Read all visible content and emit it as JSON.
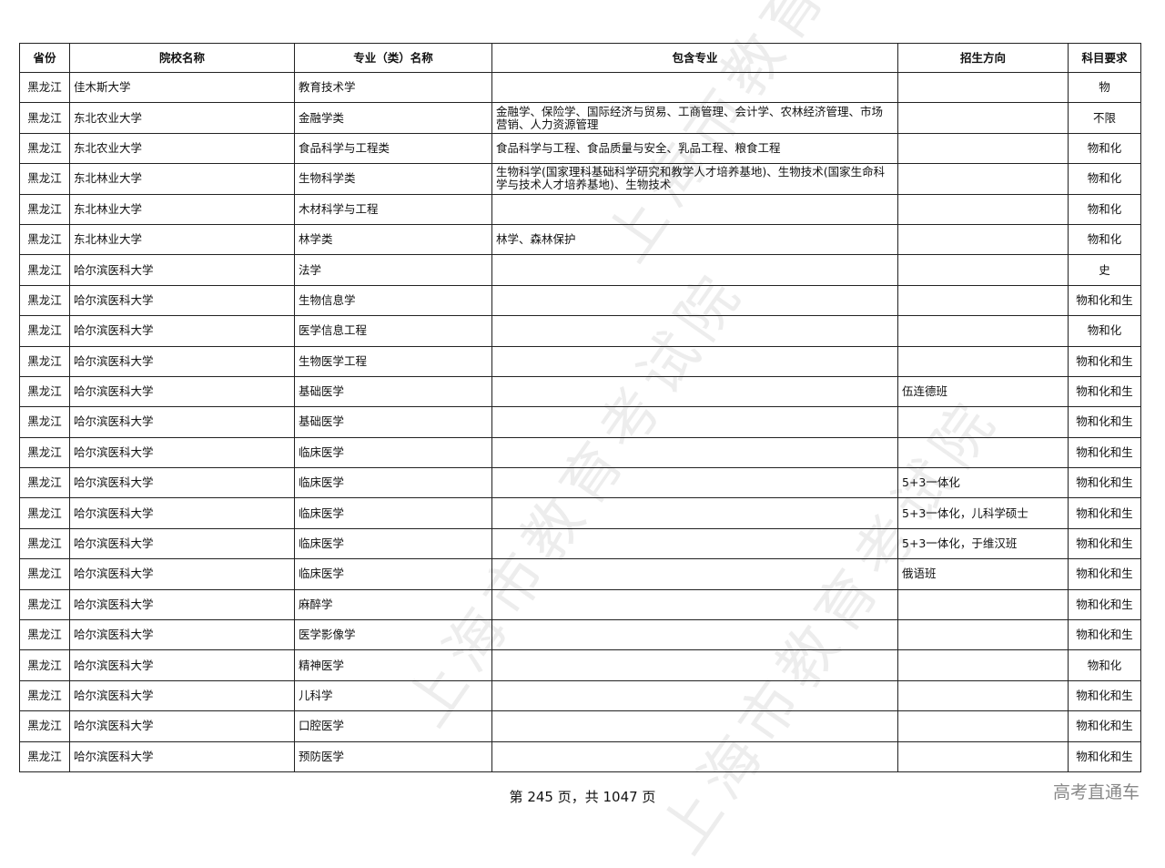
{
  "watermark": "上海市教育考试院",
  "headers": [
    "省份",
    "院校名称",
    "专业（类）名称",
    "包含专业",
    "招生方向",
    "科目要求"
  ],
  "rows": [
    [
      "黑龙江",
      "佳木斯大学",
      "教育技术学",
      "",
      "",
      "物"
    ],
    [
      "黑龙江",
      "东北农业大学",
      "金融学类",
      "金融学、保险学、国际经济与贸易、工商管理、会计学、农林经济管理、市场营销、人力资源管理",
      "",
      "不限"
    ],
    [
      "黑龙江",
      "东北农业大学",
      "食品科学与工程类",
      "食品科学与工程、食品质量与安全、乳品工程、粮食工程",
      "",
      "物和化"
    ],
    [
      "黑龙江",
      "东北林业大学",
      "生物科学类",
      "生物科学(国家理科基础科学研究和教学人才培养基地)、生物技术(国家生命科学与技术人才培养基地)、生物技术",
      "",
      "物和化"
    ],
    [
      "黑龙江",
      "东北林业大学",
      "木材科学与工程",
      "",
      "",
      "物和化"
    ],
    [
      "黑龙江",
      "东北林业大学",
      "林学类",
      "林学、森林保护",
      "",
      "物和化"
    ],
    [
      "黑龙江",
      "哈尔滨医科大学",
      "法学",
      "",
      "",
      "史"
    ],
    [
      "黑龙江",
      "哈尔滨医科大学",
      "生物信息学",
      "",
      "",
      "物和化和生"
    ],
    [
      "黑龙江",
      "哈尔滨医科大学",
      "医学信息工程",
      "",
      "",
      "物和化"
    ],
    [
      "黑龙江",
      "哈尔滨医科大学",
      "生物医学工程",
      "",
      "",
      "物和化和生"
    ],
    [
      "黑龙江",
      "哈尔滨医科大学",
      "基础医学",
      "",
      "伍连德班",
      "物和化和生"
    ],
    [
      "黑龙江",
      "哈尔滨医科大学",
      "基础医学",
      "",
      "",
      "物和化和生"
    ],
    [
      "黑龙江",
      "哈尔滨医科大学",
      "临床医学",
      "",
      "",
      "物和化和生"
    ],
    [
      "黑龙江",
      "哈尔滨医科大学",
      "临床医学",
      "",
      "5+3一体化",
      "物和化和生"
    ],
    [
      "黑龙江",
      "哈尔滨医科大学",
      "临床医学",
      "",
      "5+3一体化，儿科学硕士",
      "物和化和生"
    ],
    [
      "黑龙江",
      "哈尔滨医科大学",
      "临床医学",
      "",
      "5+3一体化，于维汉班",
      "物和化和生"
    ],
    [
      "黑龙江",
      "哈尔滨医科大学",
      "临床医学",
      "",
      "俄语班",
      "物和化和生"
    ],
    [
      "黑龙江",
      "哈尔滨医科大学",
      "麻醉学",
      "",
      "",
      "物和化和生"
    ],
    [
      "黑龙江",
      "哈尔滨医科大学",
      "医学影像学",
      "",
      "",
      "物和化和生"
    ],
    [
      "黑龙江",
      "哈尔滨医科大学",
      "精神医学",
      "",
      "",
      "物和化"
    ],
    [
      "黑龙江",
      "哈尔滨医科大学",
      "儿科学",
      "",
      "",
      "物和化和生"
    ],
    [
      "黑龙江",
      "哈尔滨医科大学",
      "口腔医学",
      "",
      "",
      "物和化和生"
    ],
    [
      "黑龙江",
      "哈尔滨医科大学",
      "预防医学",
      "",
      "",
      "物和化和生"
    ]
  ],
  "footer": {
    "page_info": "第 245 页，共 1047 页",
    "brand": "高考直通车"
  }
}
